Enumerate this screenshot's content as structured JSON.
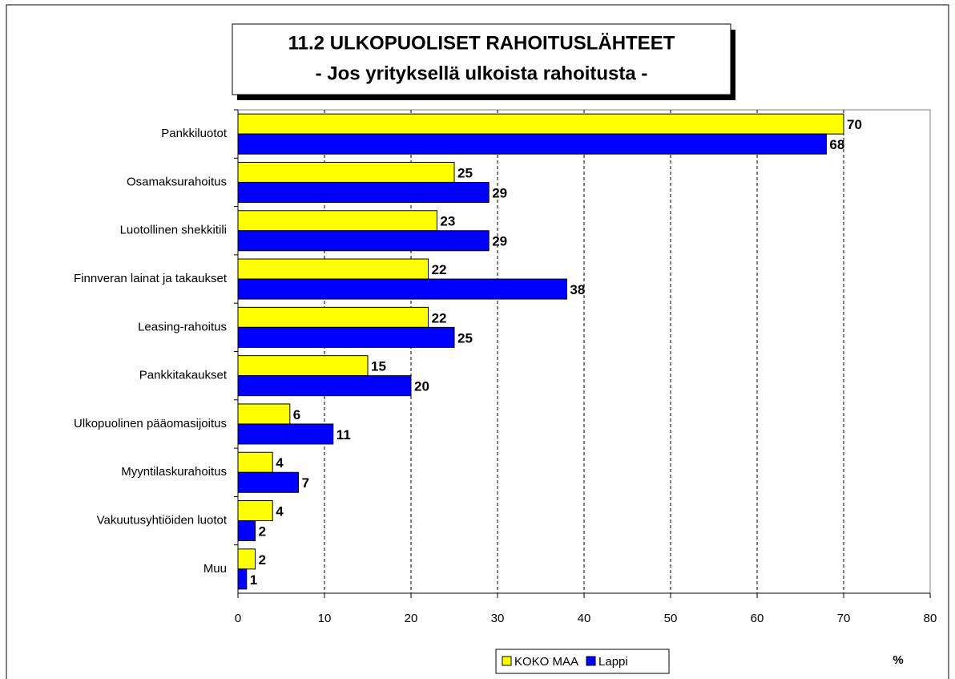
{
  "chart_data": {
    "type": "barh",
    "title": "11.2 ULKOPUOLISET RAHOITUSLÄHTEET",
    "subtitle": "- Jos yrityksellä ulkoista rahoitusta -",
    "categories": [
      "Pankkiluotot",
      "Osamaksurahoitus",
      "Luotollinen shekkitili",
      "Finnveran lainat ja takaukset",
      "Leasing-rahoitus",
      "Pankkitakaukset",
      "Ulkopuolinen pääomasijoitus",
      "Myyntilaskurahoitus",
      "Vakuutusyhtiöiden luotot",
      "Muu"
    ],
    "series": [
      {
        "name": "KOKO MAA",
        "color": "#ffff00",
        "values": [
          70,
          25,
          23,
          22,
          22,
          15,
          6,
          4,
          4,
          2
        ]
      },
      {
        "name": "Lappi",
        "color": "#0000ff",
        "values": [
          68,
          29,
          29,
          38,
          25,
          20,
          11,
          7,
          2,
          1
        ]
      }
    ],
    "xlim": [
      0,
      80
    ],
    "xticks": [
      0,
      10,
      20,
      30,
      40,
      50,
      60,
      70,
      80
    ],
    "x_label": "%",
    "grid": true,
    "legend": "bottom"
  }
}
